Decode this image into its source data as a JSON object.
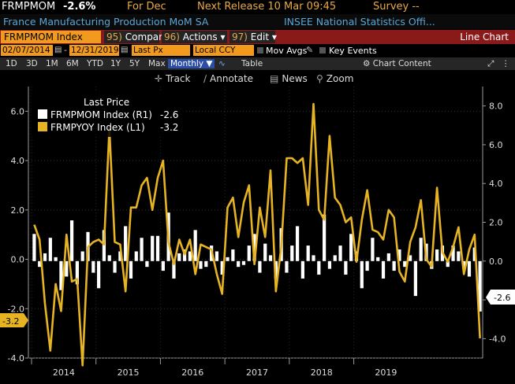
{
  "header": {
    "ticker": "FRMPMOM",
    "change": "-2.6%",
    "period": "For Dec",
    "next_release": "Next Release 10 Mar 09:45",
    "survey": "Survey --"
  },
  "subheader": {
    "name": "France Manufacturing Production MoM SA",
    "source": "INSEE National Statistics Offi..."
  },
  "toolbar": {
    "security": "FRMPMOM Index",
    "compare": {
      "num": "95)",
      "label": "Compare"
    },
    "actions": {
      "num": "96)",
      "label": "Actions"
    },
    "edit": {
      "num": "97)",
      "label": "Edit"
    },
    "chart_type": "Line Chart"
  },
  "settings": {
    "start_date": "02/07/2014",
    "end_date": "12/31/2019",
    "field": "Last Px",
    "currency": "Local CCY",
    "mov_avgs": "Mov Avgs",
    "key_events": "Key Events"
  },
  "periods": [
    "1D",
    "3D",
    "1M",
    "6M",
    "YTD",
    "1Y",
    "5Y",
    "Max"
  ],
  "frequency": "Monthly",
  "table_label": "Table",
  "chart_content": "Chart Content",
  "tools": [
    "Track",
    "Annotate",
    "News",
    "Zoom"
  ],
  "chart_data": {
    "type": "line",
    "legend_title": "Last Price",
    "series": [
      {
        "name": "FRMPMOM Index  (R1)",
        "last": "-2.6",
        "color": "#ffffff",
        "style": "bars",
        "axis": "right",
        "values": [
          1.4,
          -0.3,
          0.4,
          1.2,
          0.2,
          -1.5,
          -0.8,
          2.1,
          -1.2,
          0.5,
          1.5,
          -0.6,
          -1.4,
          1.6,
          0.3,
          -0.6,
          0.5,
          1.8,
          -0.9,
          0.5,
          1.2,
          -0.3,
          1.3,
          1.3,
          -0.5,
          2.5,
          -0.9,
          0.4,
          0.6,
          0.5,
          1.6,
          -0.4,
          -0.3,
          0.8,
          0.5,
          -0.7,
          0.2,
          0.6,
          -0.3,
          -0.2,
          0.8,
          1.4,
          -0.6,
          0.9,
          0.3,
          -0.9,
          1.7,
          -0.6,
          0.8,
          1.8,
          -0.9,
          0.8,
          0.3,
          -0.7,
          2.4,
          -0.4,
          0.3,
          0.8,
          -0.7,
          1.4,
          0.5,
          -1.4,
          -0.5,
          1.2,
          0.2,
          -0.9,
          0.4,
          -0.5,
          0.6,
          -0.3,
          0.3,
          -1.8,
          1.2,
          0.9,
          -0.4,
          0.6,
          0.8,
          -0.3,
          0.8,
          0.5,
          -0.4,
          -0.8,
          0.7,
          -2.6
        ]
      },
      {
        "name": "FRMPYOY Index  (L1)",
        "last": "-3.2",
        "color": "#e6b422",
        "style": "line",
        "axis": "left",
        "values": [
          1.4,
          0.8,
          -1.8,
          -3.7,
          -1.0,
          -2.1,
          1.0,
          -0.9,
          -0.8,
          -4.3,
          0.5,
          0.7,
          0.8,
          0.6,
          5.3,
          0.7,
          0.6,
          -1.3,
          2.1,
          2.1,
          3.0,
          3.3,
          2.0,
          3.3,
          4.0,
          0.7,
          -0.2,
          0.8,
          0.2,
          0.8,
          -0.6,
          0.6,
          0.5,
          0.4,
          -0.6,
          -1.4,
          2.1,
          2.5,
          0.9,
          2.3,
          3.0,
          -0.2,
          2.1,
          0.9,
          3.6,
          -1.3,
          0.5,
          4.1,
          4.1,
          3.9,
          4.1,
          2.2,
          6.3,
          2.0,
          1.6,
          5.0,
          2.5,
          2.2,
          1.5,
          1.7,
          -0.1,
          1.6,
          2.8,
          1.2,
          1.1,
          0.8,
          2.0,
          1.7,
          -0.5,
          -0.9,
          0.7,
          1.3,
          2.4,
          0.0,
          -0.3,
          2.9,
          0.3,
          -0.1,
          0.5,
          1.3,
          -0.6,
          0.4,
          1.0,
          -3.2
        ]
      }
    ],
    "x_start": "2014-01",
    "x_ticks": [
      "2014",
      "2015",
      "2016",
      "2017",
      "2018",
      "2019"
    ],
    "y_left": {
      "min": -4,
      "max": 7,
      "ticks": [
        "6.0",
        "4.0",
        "2.0",
        "0.0",
        "-2.0",
        "-4.0"
      ]
    },
    "y_right": {
      "min": -5,
      "max": 9,
      "ticks": [
        "8.0",
        "6.0",
        "4.0",
        "2.0",
        "0.0",
        "-2.0",
        "-4.0"
      ]
    },
    "left_last_label": "-3.2",
    "right_last_label": "-2.6"
  }
}
